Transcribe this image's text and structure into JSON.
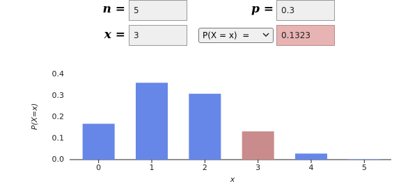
{
  "controls": {
    "n_label": "n =",
    "n_value": "5",
    "p_label": "p =",
    "p_value": "0.3",
    "x_label": "x =",
    "x_value": "3",
    "mode": "P(X = x)  =",
    "result": "0.1323"
  },
  "chart_data": {
    "type": "bar",
    "categories": [
      "0",
      "1",
      "2",
      "3",
      "4",
      "5"
    ],
    "values": [
      0.16807,
      0.36015,
      0.3087,
      0.1323,
      0.02835,
      0.00243
    ],
    "colors": [
      "#6687e8",
      "#6687e8",
      "#6687e8",
      "#c98b8b",
      "#6687e8",
      "#6687e8"
    ],
    "xlabel": "x",
    "ylabel": "P(X=x)",
    "ylim": [
      0,
      0.4
    ],
    "yticks": [
      {
        "value": 0,
        "label": "0.0"
      },
      0.1,
      0.2,
      0.3,
      0.4
    ]
  }
}
